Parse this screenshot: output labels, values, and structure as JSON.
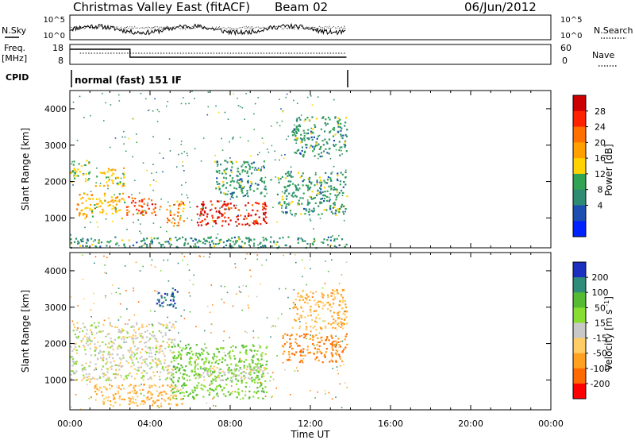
{
  "header": {
    "title": "Christmas Valley East (fitACF)",
    "beam": "Beam 02",
    "date": "06/Jun/2012"
  },
  "noise_panel": {
    "left_label": "N.Sky",
    "left_ticks": [
      "10^5",
      "10^0"
    ],
    "right_ticks": [
      "10^5",
      "10^0"
    ],
    "right_label": "N.Search"
  },
  "freq_panel": {
    "left_label_1": "Freq.",
    "left_label_2": "[MHz]",
    "left_ticks": [
      "18",
      "8"
    ],
    "right_ticks": [
      "60",
      "0"
    ],
    "right_label": "Nave"
  },
  "cpid": {
    "label": "CPID",
    "value": "normal (fast) 151 IF"
  },
  "x_axis": {
    "label": "Time UT",
    "tick_labels": [
      "00:00",
      "04:00",
      "08:00",
      "12:00",
      "16:00",
      "20:00",
      "00:00"
    ]
  },
  "power_colorbar": {
    "label": "Power [dB]",
    "tick_labels": [
      "28",
      "24",
      "20",
      "16",
      "12",
      "8",
      "4"
    ],
    "colors": [
      "#cc0000",
      "#ff2200",
      "#ff7000",
      "#ff9f00",
      "#ffd200",
      "#31a354",
      "#2e8b74",
      "#1d4fb0",
      "#0022ff"
    ]
  },
  "velocity_colorbar": {
    "label": "Velocity [m s^-1]",
    "tick_labels": [
      "200",
      "100",
      "50",
      "15",
      "-15",
      "-50",
      "-100",
      "-200"
    ],
    "colors": [
      "#1c2fbf",
      "#2f8b7a",
      "#55bb33",
      "#88dd33",
      "#c8c8c8",
      "#ffcc66",
      "#ffa020",
      "#ff6a00",
      "#ff0000"
    ]
  },
  "chart_data": [
    {
      "type": "heatmap",
      "title": "Power",
      "xlabel": "Time UT",
      "ylabel": "Slant Range [km]",
      "y_tick_labels": [
        "4000",
        "3000",
        "2000",
        "1000"
      ],
      "xlim_hours": [
        0,
        24
      ],
      "ylim_km": [
        180,
        4500
      ],
      "zlabel": "Power [dB]",
      "zlim": [
        0,
        30
      ],
      "data_extent_hours": [
        0,
        13.8
      ],
      "features": [
        {
          "time_hours": [
            0,
            1.0
          ],
          "range_km": [
            2000,
            2600
          ],
          "power_db": 12
        },
        {
          "time_hours": [
            0.3,
            2.7
          ],
          "range_km": [
            1000,
            1700
          ],
          "power_db": 16
        },
        {
          "time_hours": [
            1.2,
            2.7
          ],
          "range_km": [
            1900,
            2400
          ],
          "power_db": 15
        },
        {
          "time_hours": [
            2.8,
            4.5
          ],
          "range_km": [
            1100,
            1600
          ],
          "power_db": 24
        },
        {
          "time_hours": [
            4.8,
            5.7
          ],
          "range_km": [
            800,
            1500
          ],
          "power_db": 20
        },
        {
          "time_hours": [
            6.3,
            9.8
          ],
          "range_km": [
            800,
            1500
          ],
          "power_db": 28
        },
        {
          "time_hours": [
            7.2,
            9.8
          ],
          "range_km": [
            1600,
            2600
          ],
          "power_db": 8
        },
        {
          "time_hours": [
            10.3,
            13.8
          ],
          "range_km": [
            1100,
            2300
          ],
          "power_db": 8
        },
        {
          "time_hours": [
            11.0,
            13.8
          ],
          "range_km": [
            2700,
            3800
          ],
          "power_db": 8
        },
        {
          "time_hours": [
            0,
            13.8
          ],
          "range_km": [
            200,
            500
          ],
          "power_db": 8
        }
      ]
    },
    {
      "type": "heatmap",
      "title": "Velocity",
      "xlabel": "Time UT",
      "ylabel": "Slant Range [km]",
      "y_tick_labels": [
        "4000",
        "3000",
        "2000",
        "1000"
      ],
      "xlim_hours": [
        0,
        24
      ],
      "ylim_km": [
        180,
        4500
      ],
      "zlabel": "Velocity [m s^-1]",
      "zlim": [
        -200,
        200
      ],
      "data_extent_hours": [
        0,
        13.8
      ],
      "features": [
        {
          "time_hours": [
            0,
            5.2
          ],
          "range_km": [
            1000,
            2600
          ],
          "velocity": 0
        },
        {
          "time_hours": [
            4.3,
            5.4
          ],
          "range_km": [
            3000,
            3600
          ],
          "velocity": 200
        },
        {
          "time_hours": [
            5.0,
            9.8
          ],
          "range_km": [
            500,
            2000
          ],
          "velocity": 50
        },
        {
          "time_hours": [
            6.3,
            10.0
          ],
          "range_km": [
            1000,
            1400
          ],
          "velocity": 0
        },
        {
          "time_hours": [
            1.0,
            5.6
          ],
          "range_km": [
            300,
            900
          ],
          "velocity": -50
        },
        {
          "time_hours": [
            10.5,
            13.8
          ],
          "range_km": [
            1500,
            2300
          ],
          "velocity": -100
        },
        {
          "time_hours": [
            11.0,
            13.8
          ],
          "range_km": [
            2400,
            3500
          ],
          "velocity": -50
        }
      ]
    }
  ]
}
